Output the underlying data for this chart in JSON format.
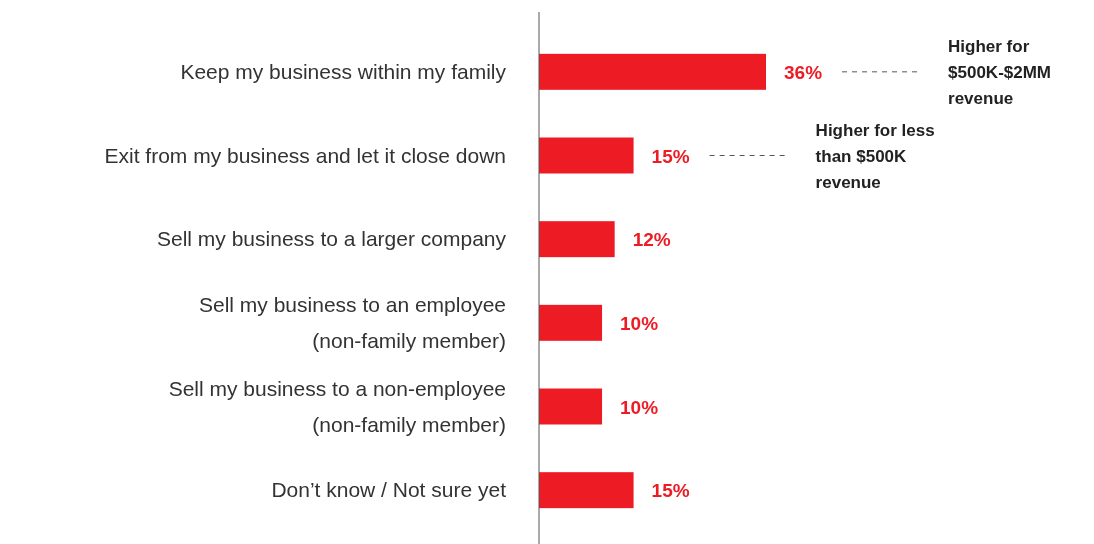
{
  "chart_data": {
    "type": "bar",
    "orientation": "horizontal",
    "categories": [
      "Keep my business within my family",
      "Exit from my business and let it close down",
      "Sell my business to a larger company",
      "Sell my business to an employee\n(non-family member)",
      "Sell my business to a non-employee\n(non-family member)",
      "Don’t know / Not sure yet"
    ],
    "values": [
      36,
      15,
      12,
      10,
      10,
      15
    ],
    "value_labels": [
      "36%",
      "15%",
      "12%",
      "10%",
      "10%",
      "15%"
    ],
    "color": "#ed1c24",
    "xlim": [
      0,
      36
    ],
    "tick_labels": "y",
    "annotations": [
      "Higher for $500K-$2MM revenue",
      "Higher for less than $500K revenue"
    ]
  }
}
